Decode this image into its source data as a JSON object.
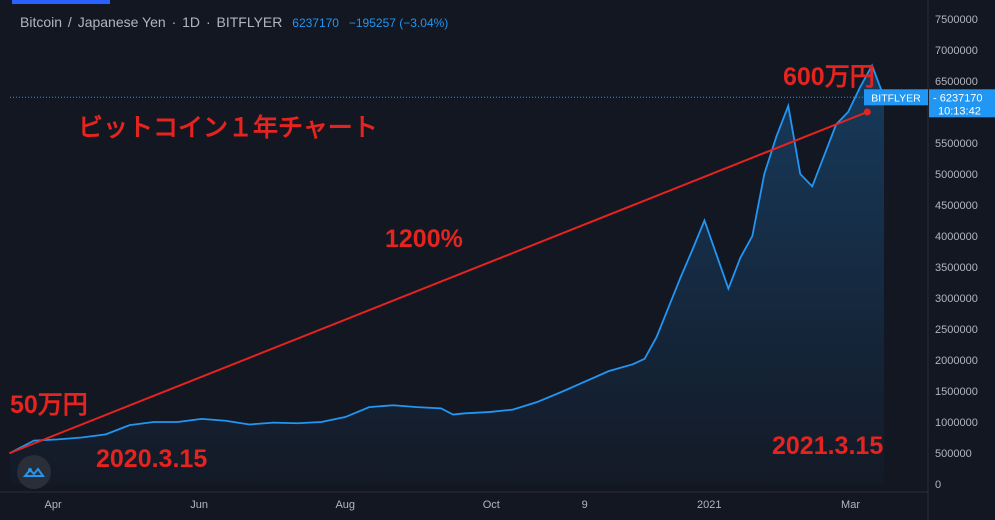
{
  "header": {
    "symbol": "Bitcoin",
    "sep": "/",
    "quote": "Japanese Yen",
    "interval": "1D",
    "exchange": "BITFLYER",
    "last": "6237170",
    "change": "−195257 (−3.04%)"
  },
  "price_tag": {
    "exchange": "BITFLYER",
    "price": "6237170",
    "countdown": "10:13:42"
  },
  "annotations": {
    "title": "ビットコイン１年チャート",
    "start_value": "50万円",
    "end_value": "600万円",
    "gain": "1200%",
    "start_date": "2020.3.15",
    "end_date": "2021.3.15"
  },
  "colors": {
    "background": "#131722",
    "line": "#2196f3",
    "annotation": "#e5231f",
    "text": "#b2b5be"
  },
  "icons": {
    "logo": "tradingview-logo-icon"
  },
  "chart_data": {
    "type": "area",
    "ylim": [
      0,
      7500000
    ],
    "yticks": [
      "7500000",
      "7000000",
      "6500000",
      "6000000",
      "5500000",
      "5000000",
      "4500000",
      "4000000",
      "3500000",
      "3000000",
      "2500000",
      "2000000",
      "1500000",
      "1000000",
      "500000",
      "0"
    ],
    "xticks": [
      "Apr",
      "Jun",
      "Aug",
      "Oct",
      "9",
      "2021",
      "Mar"
    ],
    "xtick_days": [
      18,
      79,
      140,
      201,
      240,
      292,
      351
    ],
    "x_range_days": [
      0,
      375
    ],
    "series": [
      {
        "days": [
          0,
          10,
          20,
          30,
          40,
          50,
          60,
          70,
          80,
          90,
          100,
          110,
          120,
          130,
          140,
          150,
          160,
          170,
          180,
          185,
          190,
          200,
          210,
          220,
          230,
          240,
          250,
          260,
          265,
          270,
          275,
          280,
          285,
          290,
          295,
          300,
          305,
          310,
          315,
          320,
          325,
          330,
          335,
          340,
          345,
          350,
          355,
          360,
          365
        ],
        "values": [
          500000,
          700000,
          720000,
          750000,
          800000,
          950000,
          1000000,
          1000000,
          1050000,
          1020000,
          960000,
          990000,
          980000,
          1000000,
          1080000,
          1240000,
          1270000,
          1240000,
          1220000,
          1120000,
          1140000,
          1160000,
          1200000,
          1320000,
          1480000,
          1650000,
          1820000,
          1930000,
          2020000,
          2370000,
          2850000,
          3330000,
          3780000,
          4250000,
          3700000,
          3150000,
          3650000,
          4000000,
          5000000,
          5600000,
          6100000,
          5000000,
          4800000,
          5300000,
          5800000,
          6000000,
          6400000,
          6750000,
          6237170
        ]
      }
    ],
    "price_line": 6237170,
    "trend_line": {
      "from": [
        0,
        500000
      ],
      "to": [
        358,
        6000000
      ]
    }
  }
}
